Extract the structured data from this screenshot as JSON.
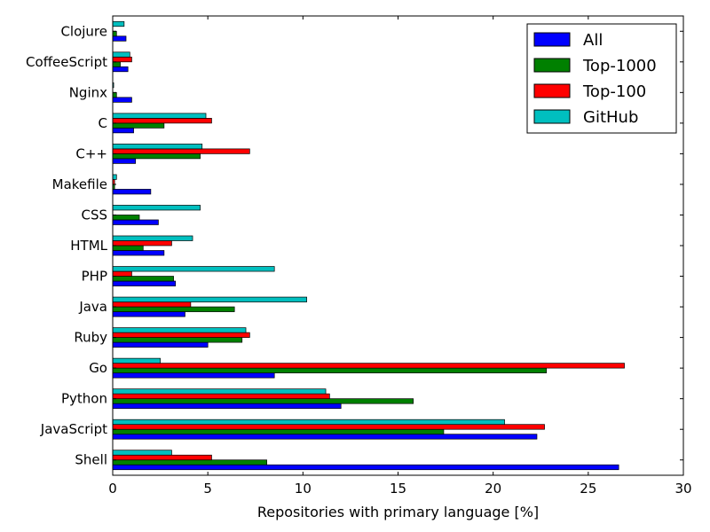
{
  "chart_data": {
    "type": "bar",
    "orientation": "horizontal",
    "categories": [
      "Clojure",
      "CoffeeScript",
      "Nginx",
      "C",
      "C++",
      "Makefile",
      "CSS",
      "HTML",
      "PHP",
      "Java",
      "Ruby",
      "Go",
      "Python",
      "JavaScript",
      "Shell"
    ],
    "series": [
      {
        "name": "All",
        "color": "#0000ff",
        "values": [
          0.7,
          0.8,
          1.0,
          1.1,
          1.2,
          2.0,
          2.4,
          2.7,
          3.3,
          3.8,
          5.0,
          8.5,
          12.0,
          22.3,
          26.6
        ]
      },
      {
        "name": "Top-1000",
        "color": "#008000",
        "values": [
          0.2,
          0.4,
          0.2,
          2.7,
          4.6,
          0.1,
          1.4,
          1.6,
          3.2,
          6.4,
          6.8,
          22.8,
          15.8,
          17.4,
          8.1
        ]
      },
      {
        "name": "Top-100",
        "color": "#ff0000",
        "values": [
          0.0,
          1.0,
          0.0,
          5.2,
          7.2,
          0.1,
          0.0,
          3.1,
          1.0,
          4.1,
          7.2,
          26.9,
          11.4,
          22.7,
          5.2
        ]
      },
      {
        "name": "GitHub",
        "color": "#00bfbf",
        "values": [
          0.6,
          0.9,
          0.05,
          4.9,
          4.7,
          0.2,
          4.6,
          4.2,
          8.5,
          10.2,
          7.0,
          2.5,
          11.2,
          20.6,
          3.1
        ]
      }
    ],
    "xlabel": "Repositories with primary language [%]",
    "ylabel": "",
    "xlim": [
      0,
      30
    ],
    "xticks": [
      "0",
      "5",
      "10",
      "15",
      "20",
      "25",
      "30"
    ],
    "grid": false,
    "legend_placement": "top-right"
  }
}
